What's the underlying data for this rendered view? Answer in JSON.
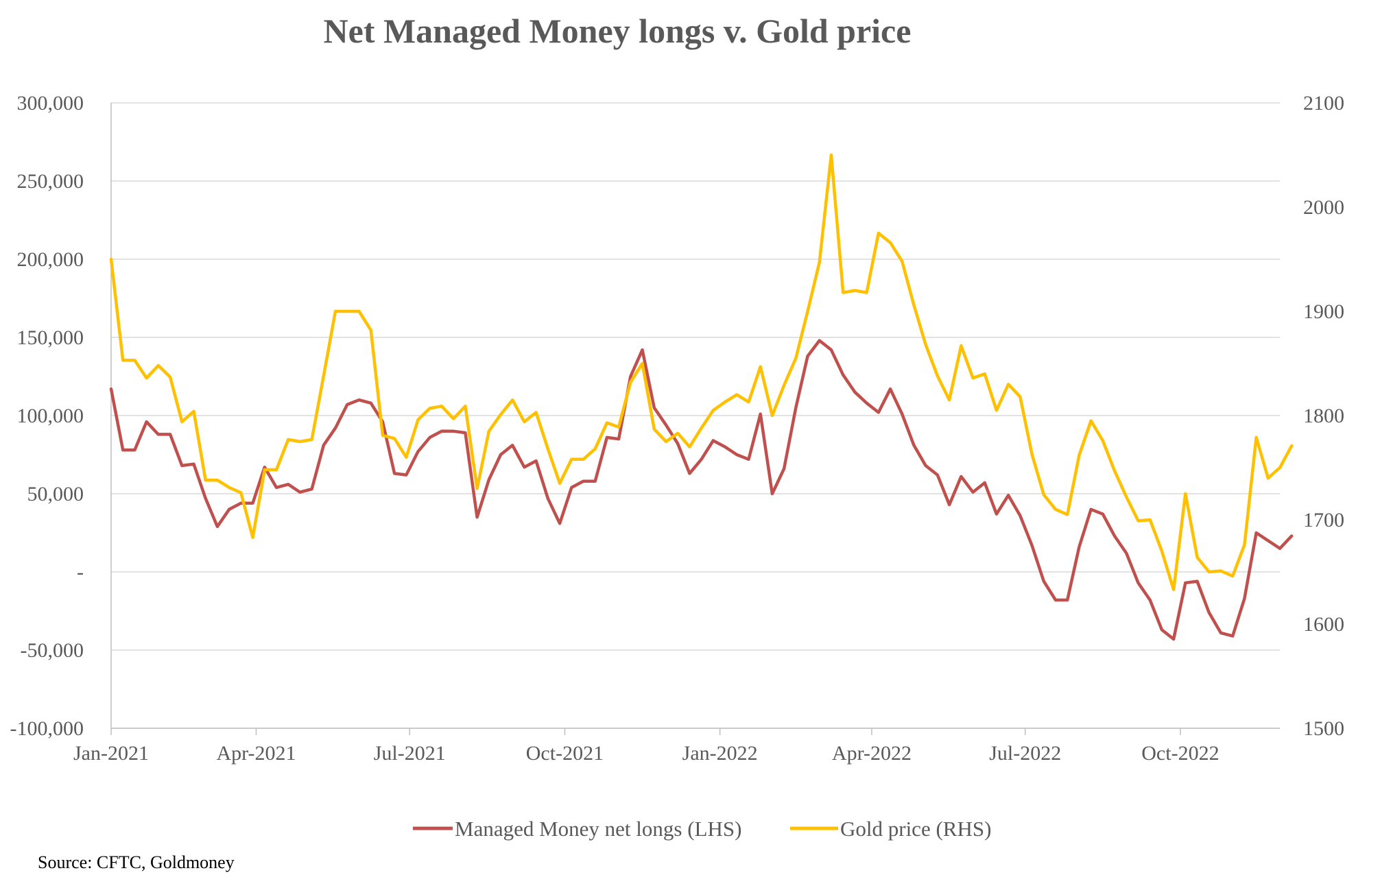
{
  "chart_data": {
    "type": "line",
    "title": "Net Managed Money longs v. Gold price",
    "source": "Source: CFTC, Goldmoney",
    "x_range": [
      "2021-01-05",
      "2022-11-29"
    ],
    "x_ticks": [
      {
        "date": "2021-01-01",
        "label": "Jan-2021"
      },
      {
        "date": "2021-04-01",
        "label": "Apr-2021"
      },
      {
        "date": "2021-07-01",
        "label": "Jul-2021"
      },
      {
        "date": "2021-10-01",
        "label": "Oct-2021"
      },
      {
        "date": "2022-01-01",
        "label": "Jan-2022"
      },
      {
        "date": "2022-04-01",
        "label": "Apr-2022"
      },
      {
        "date": "2022-07-01",
        "label": "Jul-2022"
      },
      {
        "date": "2022-10-01",
        "label": "Oct-2022"
      }
    ],
    "y_left": {
      "min": -100000,
      "max": 300000,
      "ticks": [
        {
          "value": 300000,
          "label": "300,000"
        },
        {
          "value": 250000,
          "label": "250,000"
        },
        {
          "value": 200000,
          "label": "200,000"
        },
        {
          "value": 150000,
          "label": "150,000"
        },
        {
          "value": 100000,
          "label": "100,000"
        },
        {
          "value": 50000,
          "label": "50,000"
        },
        {
          "value": 0,
          "label": "-"
        },
        {
          "value": -50000,
          "label": "-50,000"
        },
        {
          "value": -100000,
          "label": "-100,000"
        }
      ]
    },
    "y_right": {
      "min": 1500,
      "max": 2100,
      "ticks": [
        {
          "value": 2100,
          "label": "2100"
        },
        {
          "value": 2000,
          "label": "2000"
        },
        {
          "value": 1900,
          "label": "1900"
        },
        {
          "value": 1800,
          "label": "1800"
        },
        {
          "value": 1700,
          "label": "1700"
        },
        {
          "value": 1600,
          "label": "1600"
        },
        {
          "value": 1500,
          "label": "1500"
        }
      ]
    },
    "grid": true,
    "legend_position": "bottom",
    "x_start_date": "2021-01-05",
    "x_step_days": 7,
    "series": [
      {
        "name": "Managed Money net longs (LHS)",
        "axis": "left",
        "color": "#c0504d",
        "values": [
          117000,
          78000,
          78000,
          96000,
          88000,
          88000,
          68000,
          69000,
          47000,
          29000,
          40000,
          44000,
          44000,
          67000,
          54000,
          56000,
          51000,
          53000,
          81000,
          92000,
          107000,
          110000,
          108000,
          96000,
          63000,
          62000,
          77000,
          86000,
          90000,
          90000,
          89000,
          35000,
          59000,
          75000,
          81000,
          67000,
          71000,
          47000,
          31000,
          54000,
          58000,
          58000,
          86000,
          85000,
          125000,
          142000,
          105000,
          94000,
          82000,
          63000,
          72000,
          84000,
          80000,
          75000,
          72000,
          101000,
          50000,
          66000,
          105000,
          138000,
          148000,
          142000,
          126000,
          115000,
          108000,
          102000,
          117000,
          101000,
          81000,
          68000,
          62000,
          43000,
          61000,
          51000,
          57000,
          37000,
          49000,
          36000,
          17000,
          -6000,
          -18000,
          -18000,
          16000,
          40000,
          37000,
          23000,
          12000,
          -7000,
          -18000,
          -37000,
          -43000,
          -7000,
          -6000,
          -26000,
          -39000,
          -41000,
          -17000,
          25000,
          20000,
          15000,
          23000
        ]
      },
      {
        "name": "Gold price (RHS)",
        "axis": "right",
        "color": "#ffc000",
        "values": [
          1950,
          1853,
          1853,
          1836,
          1848,
          1837,
          1794,
          1804,
          1738,
          1738,
          1731,
          1726,
          1683,
          1748,
          1748,
          1777,
          1775,
          1777,
          1838,
          1900,
          1900,
          1900,
          1882,
          1781,
          1778,
          1760,
          1796,
          1807,
          1809,
          1797,
          1809,
          1730,
          1785,
          1801,
          1815,
          1794,
          1803,
          1768,
          1735,
          1758,
          1758,
          1768,
          1793,
          1789,
          1832,
          1850,
          1787,
          1775,
          1783,
          1770,
          1788,
          1805,
          1813,
          1820,
          1813,
          1847,
          1800,
          1829,
          1855,
          1900,
          1947,
          2050,
          1918,
          1920,
          1918,
          1975,
          1966,
          1948,
          1906,
          1868,
          1838,
          1815,
          1867,
          1836,
          1840,
          1805,
          1830,
          1818,
          1763,
          1724,
          1710,
          1705,
          1762,
          1795,
          1776,
          1747,
          1722,
          1699,
          1700,
          1670,
          1633,
          1725,
          1664,
          1650,
          1651,
          1646,
          1676,
          1779,
          1740,
          1750,
          1771
        ]
      }
    ]
  }
}
